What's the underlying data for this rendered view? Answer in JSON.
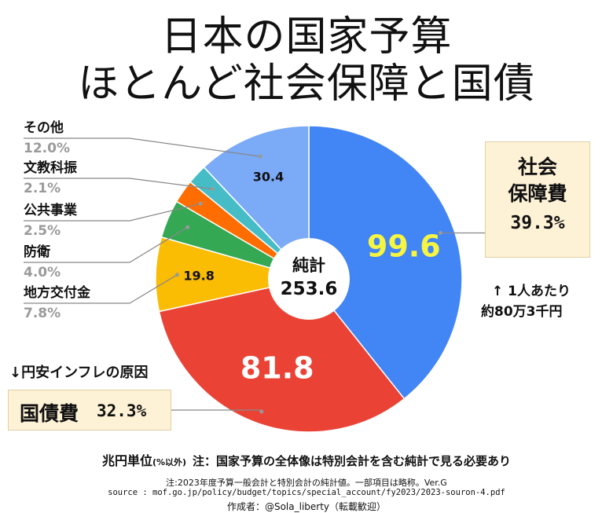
{
  "title": {
    "line1": "日本の国家予算",
    "line2": "ほとんど社会保障と国債"
  },
  "chart_data": {
    "type": "pie",
    "title": "日本の国家予算 ほとんど社会保障と国債",
    "unit": "兆円",
    "center_label": "純計",
    "center_value": "253.6",
    "slices": [
      {
        "name": "社会保障費",
        "value": 99.6,
        "value_label": "99.6",
        "percent": "39.3%",
        "color": "#4285f4",
        "value_color": "#f5f542"
      },
      {
        "name": "国債費",
        "value": 81.8,
        "value_label": "81.8",
        "percent": "32.3%",
        "color": "#ea4335",
        "value_color": "#ffffff"
      },
      {
        "name": "地方交付金",
        "value": 19.8,
        "value_label": "19.8",
        "percent": "7.8%",
        "color": "#fbbc04",
        "value_color": "#111111"
      },
      {
        "name": "防衛",
        "value": 10.2,
        "value_label": "",
        "percent": "4.0%",
        "color": "#34a853",
        "value_color": "#111111"
      },
      {
        "name": "公共事業",
        "value": 6.3,
        "value_label": "",
        "percent": "2.5%",
        "color": "#ff6d01",
        "value_color": "#111111"
      },
      {
        "name": "文教科振",
        "value": 5.3,
        "value_label": "",
        "percent": "2.1%",
        "color": "#46bdc6",
        "value_color": "#111111"
      },
      {
        "name": "その他",
        "value": 30.4,
        "value_label": "30.4",
        "percent": "12.0%",
        "color": "#7baaf7",
        "value_color": "#111111"
      }
    ]
  },
  "callouts": {
    "social_security": {
      "line1": "社会",
      "line2": "保障費",
      "percent": "39.3%"
    },
    "national_debt": {
      "name": "国債費",
      "percent": "32.3%"
    },
    "per_person_1": "↑ 1人あたり",
    "per_person_2": "約80万3千円",
    "yen_note": "↓円安インフレの原因"
  },
  "footer": {
    "unit_main": "兆円単位",
    "unit_sub": "(%以外)",
    "unit_note": "注：国家予算の全体像は特別会計を含む純計で見る必要あり",
    "note": "注:2023年度予算一般会計と特別会計の純計値。一部項目は略称。Ver.G",
    "source": "source : mof.go.jp/policy/budget/topics/special_account/fy2023/2023-souron-4.pdf",
    "author": "作成者：@Sola_liberty（転載歓迎）"
  },
  "colors": {
    "callout_bg": "#fdf1d6",
    "leader_line": "#888888"
  }
}
